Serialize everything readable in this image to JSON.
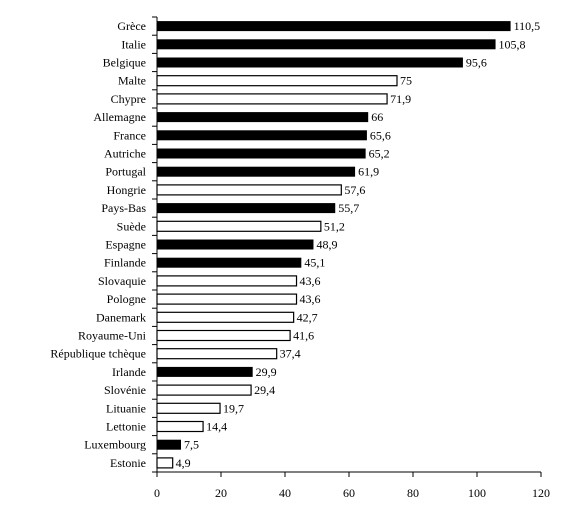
{
  "chart_data": {
    "type": "bar",
    "orientation": "horizontal",
    "title": "",
    "xlabel": "",
    "ylabel": "",
    "xlim": [
      0,
      120
    ],
    "x_ticks": [
      "0",
      "20",
      "40",
      "60",
      "80",
      "100",
      "120"
    ],
    "grid": false,
    "legend": "none",
    "colors": {
      "filled": "#000000",
      "hollow": "#ffffff",
      "outline": "#000000"
    },
    "bars": [
      {
        "category": "Grèce",
        "value": 110.5,
        "label": "110,5",
        "style": "filled"
      },
      {
        "category": "Italie",
        "value": 105.8,
        "label": "105,8",
        "style": "filled"
      },
      {
        "category": "Belgique",
        "value": 95.6,
        "label": "95,6",
        "style": "filled"
      },
      {
        "category": "Malte",
        "value": 75,
        "label": "75",
        "style": "hollow"
      },
      {
        "category": "Chypre",
        "value": 71.9,
        "label": "71,9",
        "style": "hollow"
      },
      {
        "category": "Allemagne",
        "value": 66,
        "label": "66",
        "style": "filled"
      },
      {
        "category": "France",
        "value": 65.6,
        "label": "65,6",
        "style": "filled"
      },
      {
        "category": "Autriche",
        "value": 65.2,
        "label": "65,2",
        "style": "filled"
      },
      {
        "category": "Portugal",
        "value": 61.9,
        "label": "61,9",
        "style": "filled"
      },
      {
        "category": "Hongrie",
        "value": 57.6,
        "label": "57,6",
        "style": "hollow"
      },
      {
        "category": "Pays-Bas",
        "value": 55.7,
        "label": "55,7",
        "style": "filled"
      },
      {
        "category": "Suède",
        "value": 51.2,
        "label": "51,2",
        "style": "hollow"
      },
      {
        "category": "Espagne",
        "value": 48.9,
        "label": "48,9",
        "style": "filled"
      },
      {
        "category": "Finlande",
        "value": 45.1,
        "label": "45,1",
        "style": "filled"
      },
      {
        "category": "Slovaquie",
        "value": 43.6,
        "label": "43,6",
        "style": "hollow"
      },
      {
        "category": "Pologne",
        "value": 43.6,
        "label": "43,6",
        "style": "hollow"
      },
      {
        "category": "Danemark",
        "value": 42.7,
        "label": "42,7",
        "style": "hollow"
      },
      {
        "category": "Royaume-Uni",
        "value": 41.6,
        "label": "41,6",
        "style": "hollow"
      },
      {
        "category": "République tchèque",
        "value": 37.4,
        "label": "37,4",
        "style": "hollow"
      },
      {
        "category": "Irlande",
        "value": 29.9,
        "label": "29,9",
        "style": "filled"
      },
      {
        "category": "Slovénie",
        "value": 29.4,
        "label": "29,4",
        "style": "hollow"
      },
      {
        "category": "Lituanie",
        "value": 19.7,
        "label": "19,7",
        "style": "hollow"
      },
      {
        "category": "Lettonie",
        "value": 14.4,
        "label": "14,4",
        "style": "hollow"
      },
      {
        "category": "Luxembourg",
        "value": 7.5,
        "label": "7,5",
        "style": "filled"
      },
      {
        "category": "Estonie",
        "value": 4.9,
        "label": "4,9",
        "style": "hollow"
      }
    ]
  }
}
